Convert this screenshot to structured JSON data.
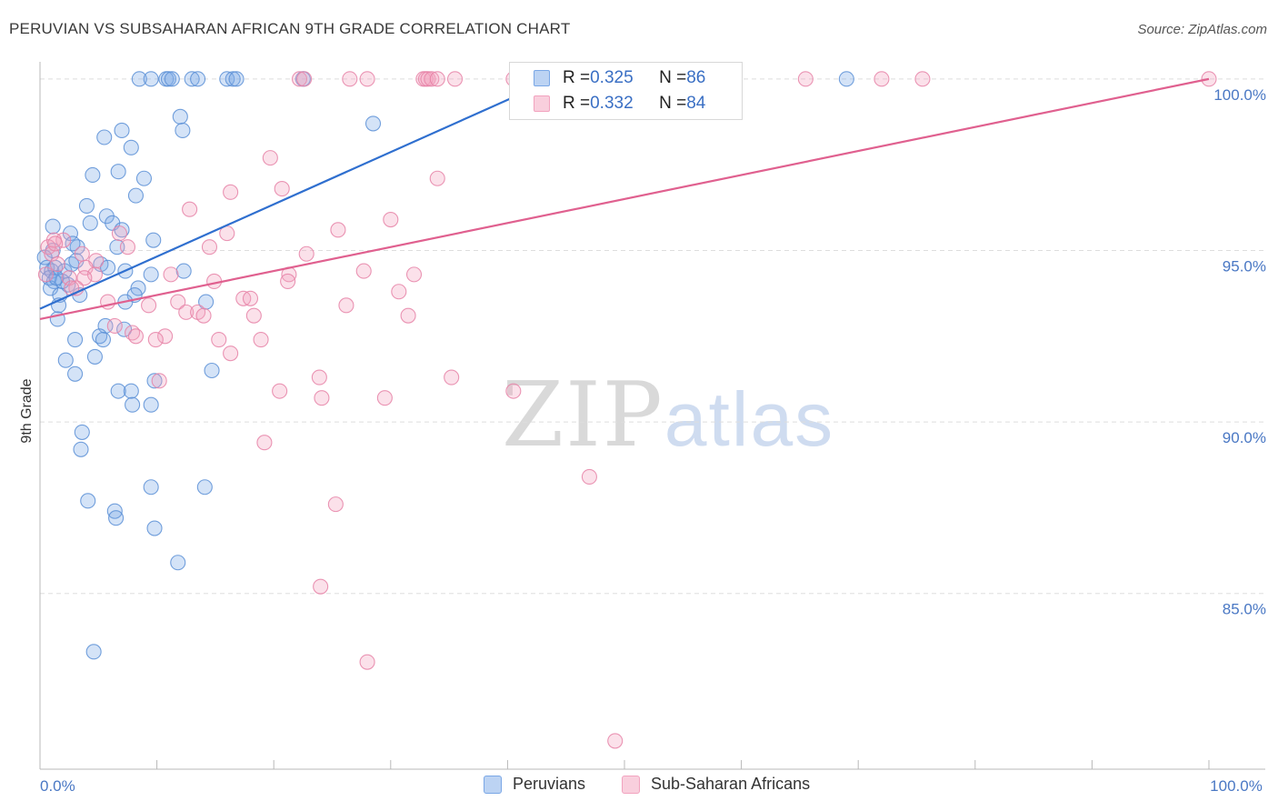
{
  "title": "PERUVIAN VS SUBSAHARAN AFRICAN 9TH GRADE CORRELATION CHART",
  "source": "Source: ZipAtlas.com",
  "watermark": {
    "zip": "ZIP",
    "atlas": "atlas"
  },
  "legend_box": {
    "rows": [
      {
        "r_label": "R = ",
        "r_value": "0.325",
        "n_label": "N = ",
        "n_value": "86",
        "color": "#7aa7e6"
      },
      {
        "r_label": "R = ",
        "r_value": "0.332",
        "n_label": "N = ",
        "n_value": "84",
        "color": "#f2a3bf"
      }
    ]
  },
  "bottom_legend": [
    {
      "label": "Peruvians",
      "color": "#7aa7e6"
    },
    {
      "label": "Sub-Saharan Africans",
      "color": "#f2a3bf"
    }
  ],
  "chart_data": {
    "type": "scatter",
    "title": "PERUVIAN VS SUBSAHARAN AFRICAN 9TH GRADE CORRELATION CHART",
    "xlabel": "",
    "ylabel": "9th Grade",
    "xlim": [
      0,
      100
    ],
    "ylim": [
      80.3,
      100.5
    ],
    "y_ticks": [
      {
        "value": 100,
        "label": "100.0%"
      },
      {
        "value": 95,
        "label": "95.0%"
      },
      {
        "value": 90,
        "label": "90.0%"
      },
      {
        "value": 85,
        "label": "85.0%"
      }
    ],
    "x_tick_labels": [
      {
        "value": 0,
        "label": "0.0%"
      },
      {
        "value": 100,
        "label": "100.0%"
      }
    ],
    "grid": true,
    "series": [
      {
        "name": "Peruvians",
        "color": "#7aa7e6",
        "stroke": "#5b8fd6",
        "trend": {
          "x0": 0,
          "y0": 93.3,
          "x1": 44,
          "y1": 100.0,
          "color": "#2f6fcf"
        },
        "points": [
          [
            8.5,
            100
          ],
          [
            9.5,
            100
          ],
          [
            10.8,
            100
          ],
          [
            11,
            100
          ],
          [
            11.3,
            100
          ],
          [
            13,
            100
          ],
          [
            13.5,
            100
          ],
          [
            16,
            100
          ],
          [
            16.5,
            100
          ],
          [
            16.8,
            100
          ],
          [
            22.5,
            100
          ],
          [
            69,
            100
          ],
          [
            28.5,
            98.7
          ],
          [
            12,
            98.9
          ],
          [
            12.2,
            98.5
          ],
          [
            7,
            98.5
          ],
          [
            5.5,
            98.3
          ],
          [
            7.8,
            98
          ],
          [
            4.5,
            97.2
          ],
          [
            6.7,
            97.3
          ],
          [
            8.9,
            97.1
          ],
          [
            8.2,
            96.6
          ],
          [
            4,
            96.3
          ],
          [
            5.7,
            96
          ],
          [
            4.3,
            95.8
          ],
          [
            6.2,
            95.8
          ],
          [
            7,
            95.6
          ],
          [
            2.6,
            95.5
          ],
          [
            3.2,
            95.1
          ],
          [
            1.1,
            95
          ],
          [
            6.6,
            95.1
          ],
          [
            0.4,
            94.8
          ],
          [
            0.6,
            94.5
          ],
          [
            1.0,
            94.4
          ],
          [
            1.3,
            94.5
          ],
          [
            2.1,
            94.4
          ],
          [
            2.7,
            94.6
          ],
          [
            3.1,
            94.7
          ],
          [
            5.2,
            94.6
          ],
          [
            5.8,
            94.5
          ],
          [
            7.3,
            94.4
          ],
          [
            9.5,
            94.3
          ],
          [
            12.3,
            94.4
          ],
          [
            9.7,
            95.3
          ],
          [
            0.8,
            94.2
          ],
          [
            1.2,
            94.1
          ],
          [
            0.9,
            93.9
          ],
          [
            1.7,
            93.7
          ],
          [
            2.4,
            94
          ],
          [
            1.9,
            94.1
          ],
          [
            3.4,
            93.7
          ],
          [
            8.4,
            93.9
          ],
          [
            8.1,
            93.7
          ],
          [
            1.6,
            93.4
          ],
          [
            7.3,
            93.5
          ],
          [
            14.2,
            93.5
          ],
          [
            1.5,
            93.0
          ],
          [
            5.6,
            92.8
          ],
          [
            3,
            92.4
          ],
          [
            5.1,
            92.5
          ],
          [
            5.4,
            92.4
          ],
          [
            7.2,
            92.7
          ],
          [
            2.2,
            91.8
          ],
          [
            4.7,
            91.9
          ],
          [
            3,
            91.4
          ],
          [
            14.7,
            91.5
          ],
          [
            9.8,
            91.2
          ],
          [
            7.8,
            90.9
          ],
          [
            6.7,
            90.9
          ],
          [
            7.9,
            90.5
          ],
          [
            9.5,
            90.5
          ],
          [
            3.6,
            89.7
          ],
          [
            3.5,
            89.2
          ],
          [
            9.5,
            88.1
          ],
          [
            14.1,
            88.1
          ],
          [
            4.1,
            87.7
          ],
          [
            6.4,
            87.4
          ],
          [
            6.5,
            87.2
          ],
          [
            9.8,
            86.9
          ],
          [
            11.8,
            85.9
          ],
          [
            4.6,
            83.3
          ],
          [
            1.1,
            95.7
          ],
          [
            1.4,
            94.2
          ],
          [
            2.8,
            95.2
          ]
        ]
      },
      {
        "name": "Sub-Saharan Africans",
        "color": "#f2a3bf",
        "stroke": "#e683a7",
        "trend": {
          "x0": 0,
          "y0": 93.0,
          "x1": 100,
          "y1": 100.0,
          "color": "#e0608f"
        },
        "points": [
          [
            22.2,
            100
          ],
          [
            22.6,
            100
          ],
          [
            28,
            100
          ],
          [
            32.8,
            100
          ],
          [
            33,
            100
          ],
          [
            33.2,
            100
          ],
          [
            33.5,
            100
          ],
          [
            35.5,
            100
          ],
          [
            40.5,
            100
          ],
          [
            41,
            100
          ],
          [
            47.5,
            100
          ],
          [
            49,
            100
          ],
          [
            65.5,
            100
          ],
          [
            72,
            100
          ],
          [
            75.5,
            100
          ],
          [
            100,
            100
          ],
          [
            26.5,
            100
          ],
          [
            34,
            100
          ],
          [
            19.7,
            97.7
          ],
          [
            34,
            97.1
          ],
          [
            20.7,
            96.8
          ],
          [
            16.3,
            96.7
          ],
          [
            12.8,
            96.2
          ],
          [
            30,
            95.9
          ],
          [
            25.5,
            95.6
          ],
          [
            16,
            95.5
          ],
          [
            6.8,
            95.5
          ],
          [
            2,
            95.3
          ],
          [
            1.2,
            95.3
          ],
          [
            14.5,
            95.1
          ],
          [
            7.5,
            95.1
          ],
          [
            0.7,
            95.1
          ],
          [
            1,
            94.9
          ],
          [
            3.6,
            94.9
          ],
          [
            22.8,
            94.9
          ],
          [
            4.8,
            94.7
          ],
          [
            3.9,
            94.5
          ],
          [
            27.7,
            94.4
          ],
          [
            21.3,
            94.3
          ],
          [
            32,
            94.3
          ],
          [
            11.2,
            94.3
          ],
          [
            4.7,
            94.3
          ],
          [
            3.8,
            94.2
          ],
          [
            2.5,
            94.2
          ],
          [
            14.9,
            94.1
          ],
          [
            21.2,
            94.1
          ],
          [
            3.1,
            93.9
          ],
          [
            30.7,
            93.8
          ],
          [
            17.4,
            93.6
          ],
          [
            18,
            93.6
          ],
          [
            5.8,
            93.5
          ],
          [
            11.8,
            93.5
          ],
          [
            26.2,
            93.4
          ],
          [
            9.3,
            93.4
          ],
          [
            12.5,
            93.2
          ],
          [
            13.5,
            93.2
          ],
          [
            14,
            93.1
          ],
          [
            18.3,
            93.1
          ],
          [
            31.5,
            93.1
          ],
          [
            6.4,
            92.8
          ],
          [
            7.9,
            92.6
          ],
          [
            8.2,
            92.5
          ],
          [
            10.7,
            92.5
          ],
          [
            9.9,
            92.4
          ],
          [
            15.3,
            92.4
          ],
          [
            18.9,
            92.4
          ],
          [
            16.3,
            92.0
          ],
          [
            23.9,
            91.3
          ],
          [
            35.2,
            91.3
          ],
          [
            10.2,
            91.2
          ],
          [
            20.5,
            90.9
          ],
          [
            40.5,
            90.9
          ],
          [
            24.1,
            90.7
          ],
          [
            29.5,
            90.7
          ],
          [
            19.2,
            89.4
          ],
          [
            47,
            88.4
          ],
          [
            25.3,
            87.6
          ],
          [
            24,
            85.2
          ],
          [
            28,
            83
          ],
          [
            49.2,
            80.7
          ],
          [
            1.5,
            94.6
          ],
          [
            0.5,
            94.3
          ],
          [
            1.3,
            95.2
          ],
          [
            2.7,
            93.9
          ]
        ]
      }
    ]
  }
}
